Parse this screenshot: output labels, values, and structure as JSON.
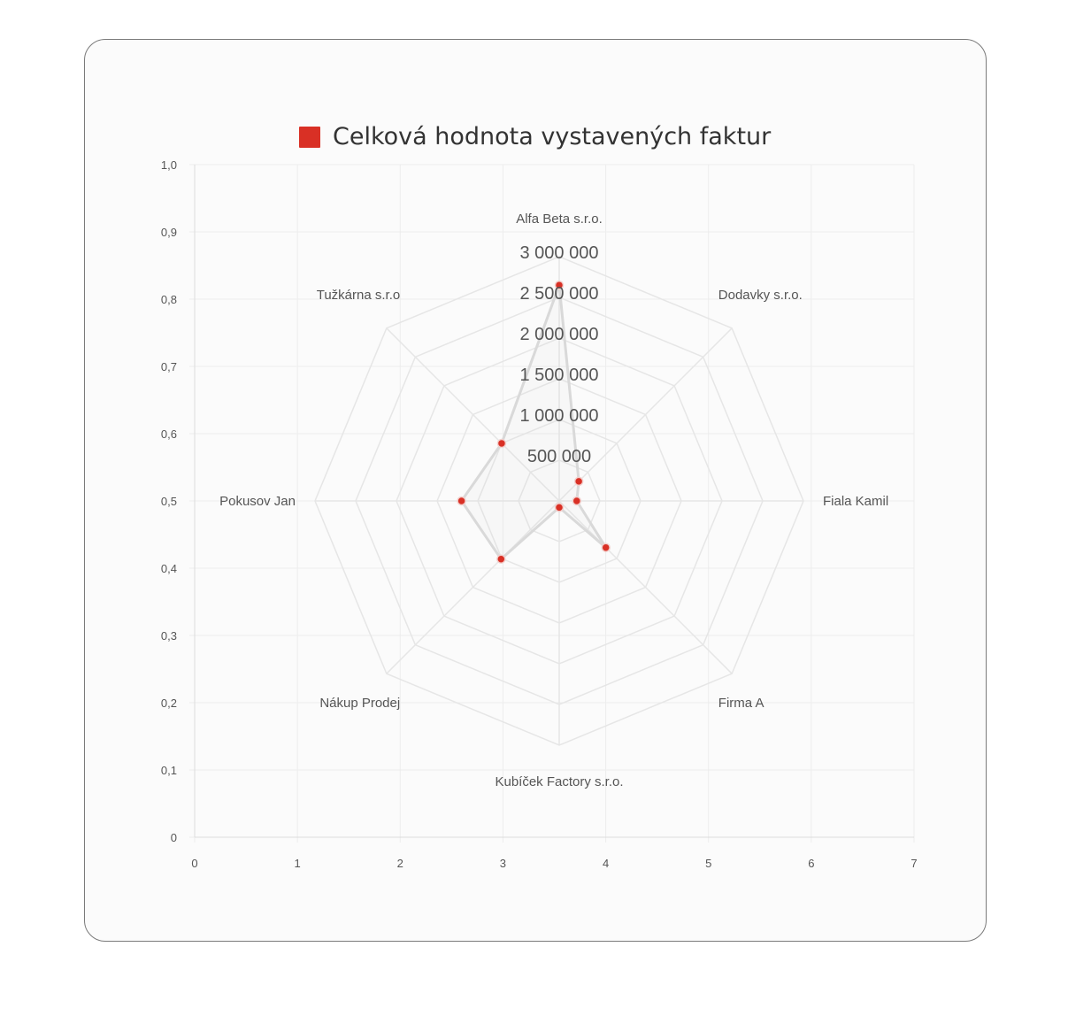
{
  "colors": {
    "accent": "#d93025",
    "grid": "#e6e6e6",
    "line": "#d9d9d9",
    "text": "#555555"
  },
  "chart_data": [
    {
      "type": "radar",
      "legend": "Celková hodnota vystavených faktur",
      "legend_position": "top",
      "labels": [
        "Alfa Beta s.r.o.",
        "Dodavky s.r.o.",
        "Fiala Kamil",
        "Firma A",
        "Kubíček Factory s.r.o.",
        "Nákup Prodej",
        "Pokusov Jan",
        "Tužkárna s.r.o"
      ],
      "r_ticks": [
        "500 000",
        "1 000 000",
        "1 500 000",
        "2 000 000",
        "2 500 000",
        "3 000 000"
      ],
      "r_range": [
        0,
        3000000
      ],
      "series": [
        {
          "values": [
            2650000,
            340000,
            215000,
            810000,
            80000,
            1010000,
            1200000,
            1000000
          ]
        }
      ],
      "grid": true
    },
    {
      "type": "scatter",
      "xlim": [
        0,
        7
      ],
      "ylim": [
        0,
        1
      ],
      "x_ticks": [
        "0",
        "1",
        "2",
        "3",
        "4",
        "5",
        "6",
        "7"
      ],
      "y_ticks": [
        "0",
        "0,1",
        "0,2",
        "0,3",
        "0,4",
        "0,5",
        "0,6",
        "0,7",
        "0,8",
        "0,9",
        "1,0"
      ],
      "grid": true
    }
  ]
}
